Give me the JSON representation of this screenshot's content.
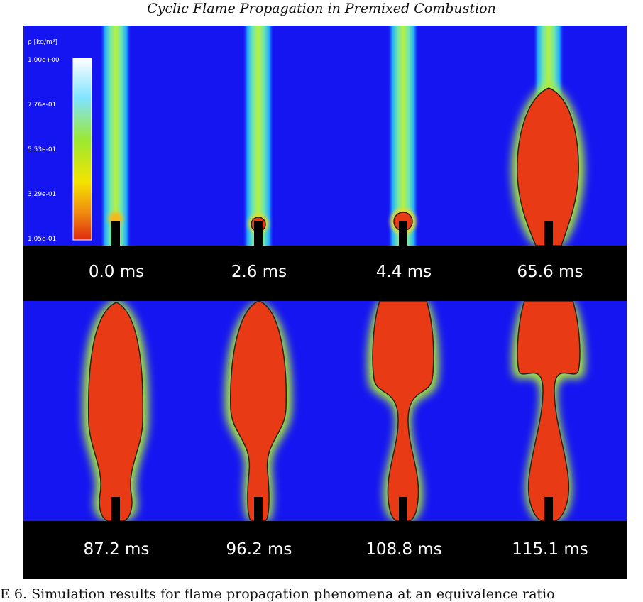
{
  "title": "Cyclic Flame Propagation in Premixed Combustion",
  "colorbar": {
    "label": "ρ [kg/m³]",
    "ticks": [
      "1.00e+00",
      "7.76e-01",
      "5.53e-01",
      "3.29e-01",
      "1.05e-01"
    ],
    "colors": [
      "#ffffff",
      "#7fe3ff",
      "#9be832",
      "#f3e400",
      "#e02a10"
    ]
  },
  "panels": [
    {
      "time": "0.0 ms"
    },
    {
      "time": "2.6 ms"
    },
    {
      "time": "4.4 ms"
    },
    {
      "time": "65.6 ms"
    },
    {
      "time": "87.2 ms"
    },
    {
      "time": "96.2 ms"
    },
    {
      "time": "108.8 ms"
    },
    {
      "time": "115.1 ms"
    }
  ],
  "caption": "E 6. Simulation results for flame propagation phenomena at an equivalence ratio",
  "colors": {
    "background": "#1515f2",
    "label_bar": "#000000",
    "flame_core": "#e83a15"
  }
}
